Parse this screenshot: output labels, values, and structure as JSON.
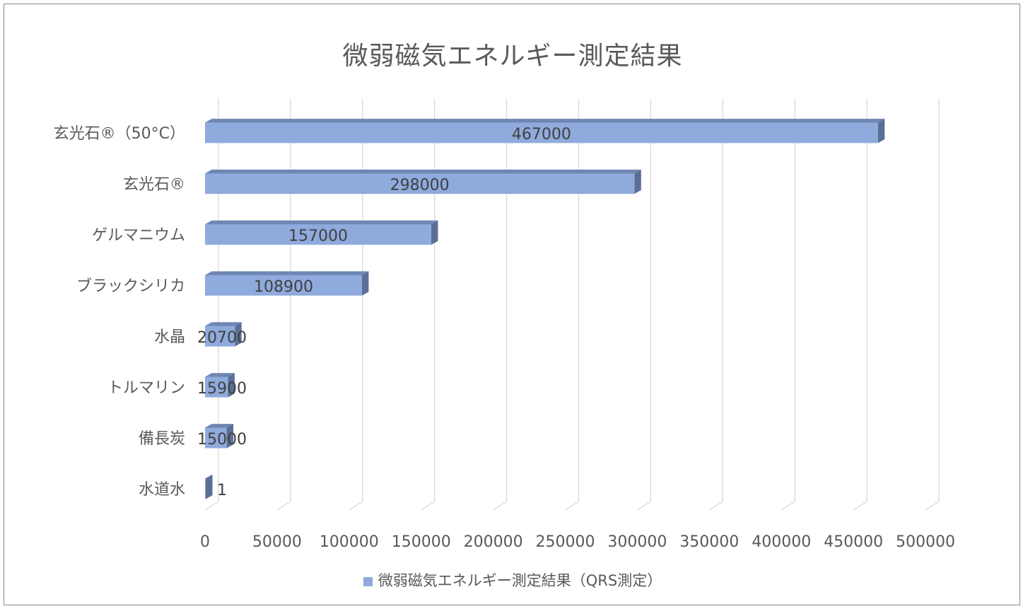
{
  "chart_data": {
    "type": "bar",
    "orientation": "horizontal",
    "style": "3d",
    "title": "微弱磁気エネルギー測定結果",
    "categories": [
      "玄光石®（50°C）",
      "玄光石®",
      "ゲルマニウム",
      "ブラックシリカ",
      "水晶",
      "トルマリン",
      "備長炭",
      "水道水"
    ],
    "series": [
      {
        "name": "微弱磁気エネルギー測定結果（QRS測定）",
        "values": [
          467000,
          298000,
          157000,
          108900,
          20700,
          15900,
          15000,
          1
        ]
      }
    ],
    "data_labels": [
      "467000",
      "298000",
      "157000",
      "108900",
      "20700",
      "15900",
      "15000",
      "1"
    ],
    "xlim": [
      0,
      500000
    ],
    "x_ticks": [
      "0",
      "50000",
      "100000",
      "150000",
      "200000",
      "250000",
      "300000",
      "350000",
      "400000",
      "450000",
      "500000"
    ],
    "grid": true,
    "legend_position": "bottom",
    "colors": {
      "bar_front": "#8faadc",
      "bar_top": "#6f86b3",
      "bar_side": "#5b6f96",
      "grid": "#d9d9d9",
      "text": "#595959"
    }
  }
}
